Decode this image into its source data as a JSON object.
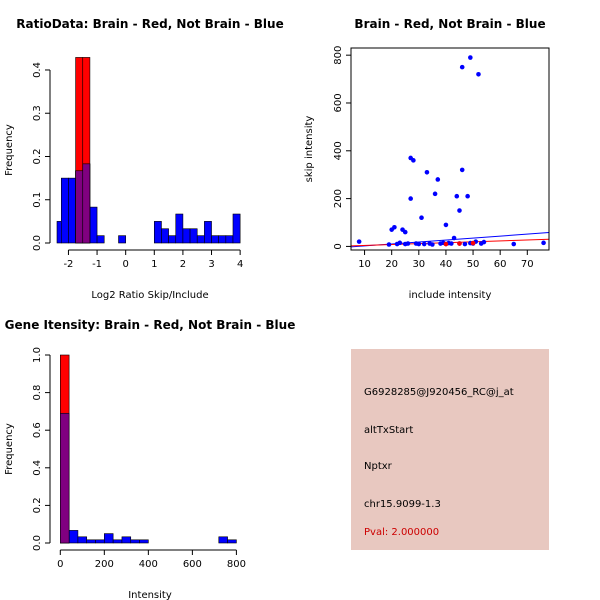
{
  "colors": {
    "red": "#ff0000",
    "blue": "#0000ff",
    "overlap": "#800080",
    "panel": "#e8c8c0",
    "pval": "#cc0000"
  },
  "chart_data": [
    {
      "id": "ratio",
      "type": "bar",
      "title": "RatioData: Brain - Red, Not Brain - Blue",
      "xlabel": "Log2 Ratio Skip/Include",
      "ylabel": "Frequency",
      "xlim": [
        -2.4,
        4.1
      ],
      "ylim": [
        0,
        0.43
      ],
      "xticks": [
        -2,
        -1,
        0,
        1,
        2,
        3,
        4
      ],
      "yticks": [
        0.0,
        0.1,
        0.2,
        0.3,
        0.4
      ],
      "series": [
        {
          "name": "Not Brain",
          "color": "blue",
          "bins": [
            [
              -2.5,
              -2.25,
              0.05
            ],
            [
              -2.25,
              -2.0,
              0.15
            ],
            [
              -2.0,
              -1.75,
              0.15
            ],
            [
              -1.75,
              -1.5,
              0.167
            ],
            [
              -1.5,
              -1.25,
              0.183
            ],
            [
              -1.25,
              -1.0,
              0.083
            ],
            [
              -1.0,
              -0.75,
              0.017
            ],
            [
              -0.25,
              0.0,
              0.017
            ],
            [
              1.0,
              1.25,
              0.05
            ],
            [
              1.25,
              1.5,
              0.033
            ],
            [
              1.5,
              1.75,
              0.017
            ],
            [
              1.75,
              2.0,
              0.067
            ],
            [
              2.0,
              2.25,
              0.033
            ],
            [
              2.25,
              2.5,
              0.033
            ],
            [
              2.5,
              2.75,
              0.017
            ],
            [
              2.75,
              3.0,
              0.05
            ],
            [
              3.0,
              3.25,
              0.017
            ],
            [
              3.25,
              3.5,
              0.017
            ],
            [
              3.5,
              3.75,
              0.017
            ],
            [
              3.75,
              4.0,
              0.067
            ]
          ]
        },
        {
          "name": "Brain",
          "color": "red",
          "bins": [
            [
              -1.75,
              -1.5,
              0.429
            ],
            [
              -1.5,
              -1.25,
              0.429
            ]
          ]
        }
      ]
    },
    {
      "id": "scatter",
      "type": "scatter",
      "title": "Brain - Red, Not Brain - Blue",
      "xlabel": "include intensity",
      "ylabel": "skip intensity",
      "xlim": [
        5,
        78
      ],
      "ylim": [
        -15,
        830
      ],
      "xticks": [
        10,
        20,
        30,
        40,
        50,
        60,
        70
      ],
      "yticks": [
        0,
        200,
        400,
        600,
        800
      ],
      "points": [
        [
          8,
          20
        ],
        [
          19,
          8
        ],
        [
          20,
          70
        ],
        [
          21,
          80
        ],
        [
          22,
          10
        ],
        [
          23,
          15
        ],
        [
          24,
          70
        ],
        [
          25,
          10
        ],
        [
          25,
          60
        ],
        [
          26,
          12
        ],
        [
          27,
          200
        ],
        [
          27,
          370
        ],
        [
          28,
          360
        ],
        [
          29,
          12
        ],
        [
          30,
          10
        ],
        [
          31,
          120
        ],
        [
          32,
          10
        ],
        [
          33,
          310
        ],
        [
          34,
          12
        ],
        [
          35,
          8
        ],
        [
          36,
          220
        ],
        [
          37,
          280
        ],
        [
          38,
          12
        ],
        [
          39,
          15
        ],
        [
          40,
          90
        ],
        [
          40,
          10
        ],
        [
          41,
          14
        ],
        [
          42,
          12
        ],
        [
          43,
          35
        ],
        [
          44,
          210
        ],
        [
          45,
          150
        ],
        [
          45,
          12
        ],
        [
          46,
          320
        ],
        [
          46,
          750
        ],
        [
          47,
          10
        ],
        [
          48,
          210
        ],
        [
          49,
          790
        ],
        [
          49,
          14
        ],
        [
          50,
          12
        ],
        [
          51,
          20
        ],
        [
          52,
          720
        ],
        [
          53,
          12
        ],
        [
          54,
          18
        ],
        [
          65,
          10
        ],
        [
          76,
          15
        ]
      ],
      "red_points": [
        [
          40,
          10
        ],
        [
          45,
          12
        ],
        [
          50,
          14
        ]
      ],
      "lines": [
        {
          "color": "blue",
          "x": [
            5,
            78
          ],
          "y": [
            -2,
            58
          ]
        },
        {
          "color": "red",
          "x": [
            5,
            78
          ],
          "y": [
            2,
            30
          ]
        }
      ]
    },
    {
      "id": "intensity",
      "type": "bar",
      "title": "Gene Itensity: Brain - Red, Not Brain - Blue",
      "xlabel": "Intensity",
      "ylabel": "Frequency",
      "xlim": [
        -15,
        830
      ],
      "ylim": [
        0,
        1.0
      ],
      "xticks": [
        0,
        200,
        400,
        600,
        800
      ],
      "yticks": [
        0.0,
        0.2,
        0.4,
        0.6,
        0.8,
        1.0
      ],
      "series": [
        {
          "name": "Not Brain",
          "color": "blue",
          "bins": [
            [
              0,
              40,
              0.69
            ],
            [
              40,
              80,
              0.067
            ],
            [
              80,
              120,
              0.033
            ],
            [
              120,
              160,
              0.017
            ],
            [
              160,
              200,
              0.017
            ],
            [
              200,
              240,
              0.05
            ],
            [
              240,
              280,
              0.017
            ],
            [
              280,
              320,
              0.033
            ],
            [
              320,
              360,
              0.017
            ],
            [
              360,
              400,
              0.017
            ],
            [
              720,
              760,
              0.033
            ],
            [
              760,
              800,
              0.017
            ]
          ]
        },
        {
          "name": "Brain",
          "color": "red",
          "bins": [
            [
              0,
              40,
              1.0
            ]
          ]
        }
      ]
    }
  ],
  "info": {
    "probe": "G6928285@J920456_RC@j_at",
    "event": "altTxStart",
    "gene": "Nptxr",
    "location": "chr15.9099-1.3",
    "pval": "Pval: 2.000000"
  }
}
